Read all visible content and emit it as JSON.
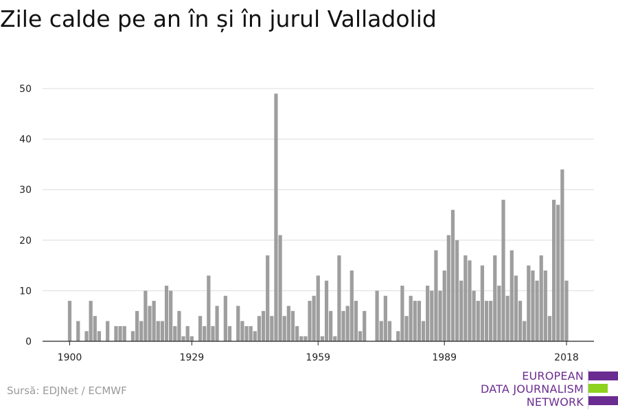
{
  "chart_data": {
    "type": "bar",
    "title": "Zile calde pe an în și în jurul Valladolid",
    "xlabel": "",
    "ylabel": "",
    "x_ticks": [
      1900,
      1929,
      1959,
      1989,
      2018
    ],
    "y_ticks": [
      0,
      10,
      20,
      30,
      40,
      50
    ],
    "xlim": [
      1900,
      2018
    ],
    "ylim": [
      0,
      50
    ],
    "grid": true,
    "bar_color": "#9e9e9e",
    "series": [
      {
        "values": [
          8,
          0,
          4,
          0,
          2,
          8,
          5,
          2,
          0,
          4,
          0,
          3,
          3,
          3,
          0,
          2,
          6,
          4,
          10,
          7,
          8,
          4,
          4,
          11,
          10,
          3,
          6,
          1,
          3,
          1,
          0,
          5,
          3,
          13,
          3,
          7,
          0,
          9,
          3,
          0,
          7,
          4,
          3,
          3,
          2,
          5,
          6,
          17,
          5,
          49,
          21,
          5,
          7,
          6,
          3,
          1,
          1,
          8,
          9,
          13,
          1,
          12,
          6,
          1,
          17,
          6,
          7,
          14,
          8,
          2,
          6,
          0,
          0,
          10,
          4,
          9,
          4,
          0,
          2,
          11,
          5,
          9,
          8,
          8,
          4,
          11,
          10,
          18,
          10,
          14,
          21,
          26,
          20,
          12,
          17,
          16,
          10,
          8,
          15,
          8,
          8,
          17,
          11,
          28,
          9,
          18,
          13,
          8,
          4,
          15,
          14,
          12,
          17,
          14,
          5,
          28,
          27,
          34,
          12
        ]
      }
    ]
  },
  "source": "Sursă: EDJNet / ECMWF",
  "logo": {
    "lines": [
      "EUROPEAN",
      "DATA JOURNALISM",
      "NETWORK"
    ],
    "colors": {
      "purple": "#6b2c91",
      "green": "#8dd21e"
    }
  }
}
